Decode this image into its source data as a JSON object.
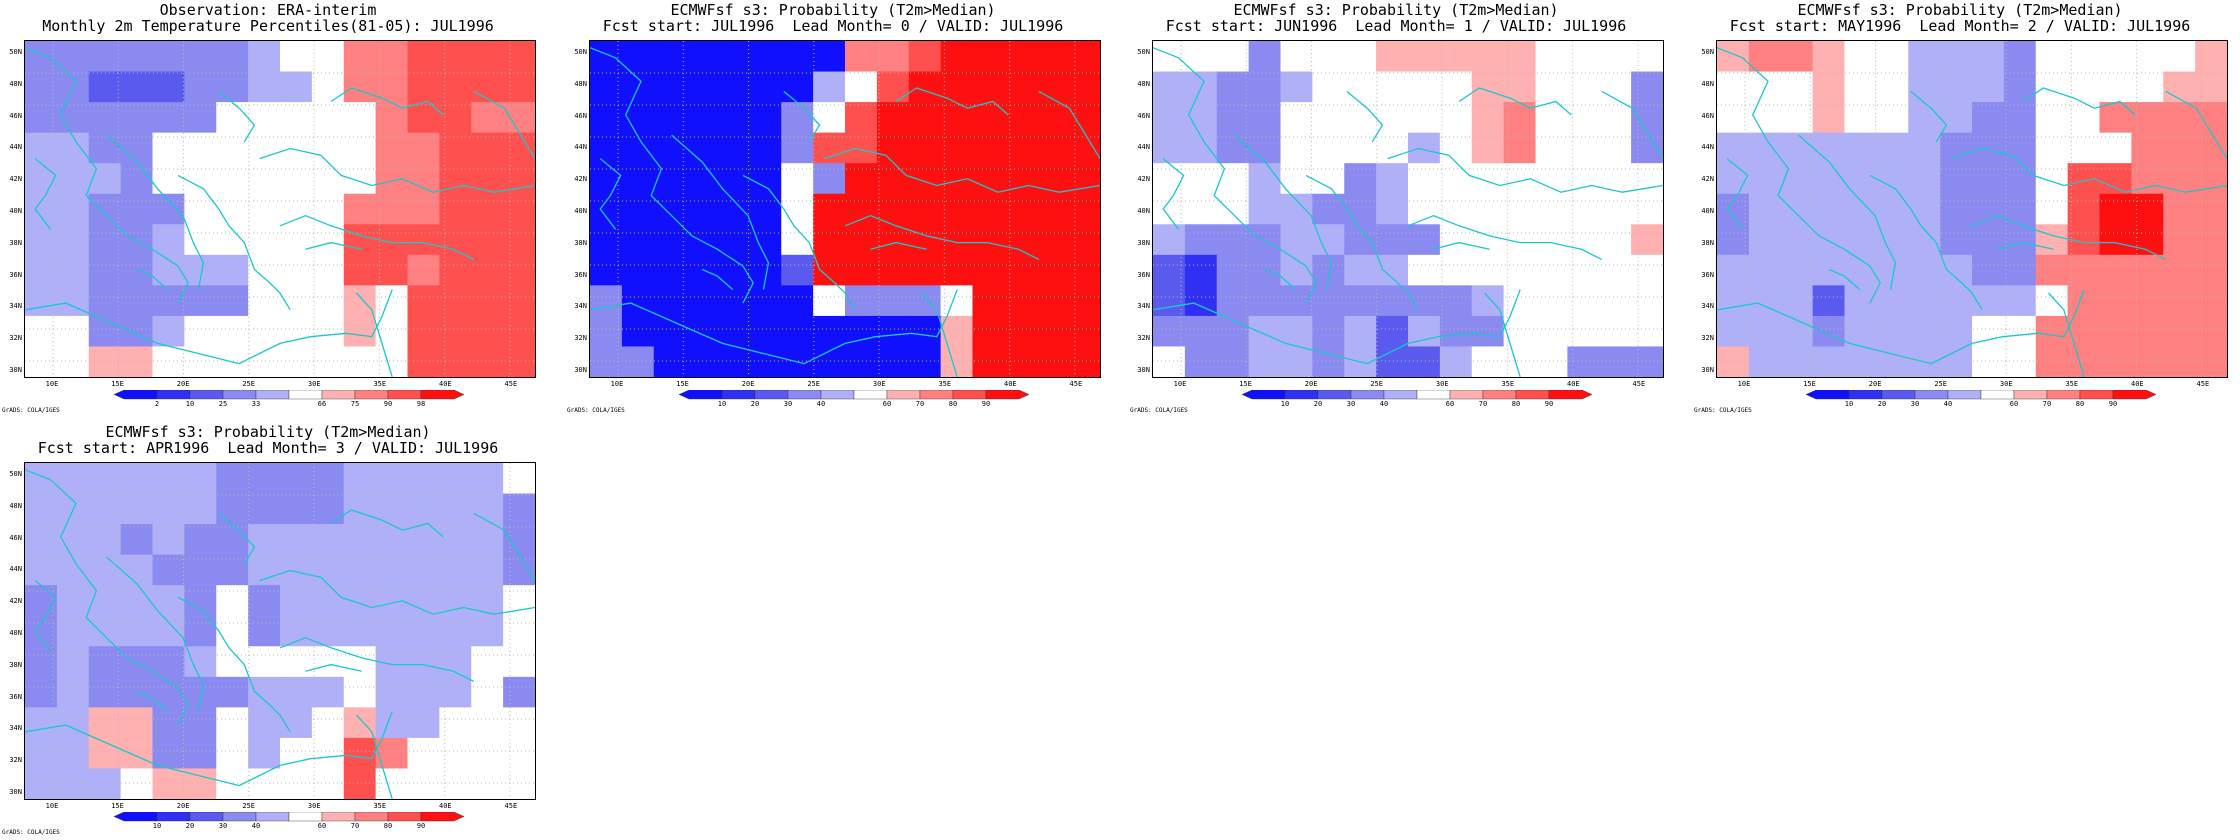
{
  "colors": {
    "levels": [
      "#1010ff",
      "#3030f5",
      "#5a5aee",
      "#8a8af0",
      "#b0b0f8",
      "#ffffff",
      "#ffb0b0",
      "#ff8080",
      "#ff5050",
      "#ff1010"
    ],
    "coast": "#19c8cc",
    "grid": "#b8b8b8"
  },
  "lat_ticks": [
    "50N",
    "48N",
    "46N",
    "44N",
    "42N",
    "40N",
    "38N",
    "36N",
    "34N",
    "32N",
    "30N"
  ],
  "lon_ticks": [
    "10E",
    "15E",
    "20E",
    "25E",
    "30E",
    "35E",
    "40E",
    "45E"
  ],
  "credit": "GrADS: COLA/IGES",
  "panels": [
    {
      "title1": "Observation: ERA-interim",
      "title2": "Monthly 2m Temperature Percentiles(81-05): JUL1996",
      "colorbar": [
        "2",
        "10",
        "25",
        "33",
        "66",
        "75",
        "90",
        "98"
      ],
      "icon": "map-icon",
      "grid": [
        "3333333455778888",
        "3322233445778888",
        "3333335555578877",
        "4433555555577888",
        "4443555555577888",
        "4433355555777888",
        "4433455555888888",
        "4433444555887888",
        "4433333555658888",
        "5533455555658888",
        "5566555555558888"
      ]
    },
    {
      "title1": "ECMWFsf s3: Probability (T2m>Median)",
      "title2": "Fcst start: JUL1996  Lead Month= 0 / VALID: JUL1996",
      "colorbar": [
        "10",
        "20",
        "30",
        "40",
        "60",
        "70",
        "80",
        "90"
      ],
      "icon": "map-icon",
      "grid": [
        "0000000077899999",
        "0000000458999999",
        "0000003589999999",
        "0000003889999999",
        "0000005399999999",
        "0000005999999999",
        "0000005999999999",
        "0000002999999999",
        "3000000533359999",
        "3000000000069999",
        "3300000000069999"
      ]
    },
    {
      "title1": "ECMWFsf s3: Probability (T2m>Median)",
      "title2": "Fcst start: JUN1996  Lead Month= 1 / VALID: JUL1996",
      "colorbar": [
        "10",
        "20",
        "30",
        "40",
        "60",
        "70",
        "80",
        "90"
      ],
      "icon": "map-icon",
      "grid": [
        "5553555666665555",
        "4433455555665553",
        "4433555555675553",
        "4433555545675553",
        "5554553455555555",
        "5554433455555555",
        "4333443335555556",
        "2133434455555555",
        "2133333333455555",
        "3334434243355555",
        "5334434224555333"
      ]
    },
    {
      "title1": "ECMWFsf s3: Probability (T2m>Median)",
      "title2": "Fcst start: MAY1996  Lead Month= 2 / VALID: JUL1996",
      "colorbar": [
        "10",
        "20",
        "30",
        "40",
        "60",
        "70",
        "80",
        "90"
      ],
      "icon": "map-icon",
      "grid": [
        "6776554443555556",
        "5556554443555566",
        "5556554433557777",
        "4444444333555777",
        "4444444333588777",
        "3444444333589977",
        "3444444333689977",
        "4444444433777777",
        "4442444444577777",
        "4443444455777777",
        "6444444455777777"
      ]
    },
    {
      "title1": "ECMWFsf s3: Probability (T2m>Median)",
      "title2": "Fcst start: APR1996  Lead Month= 3 / VALID: JUL1996",
      "colorbar": [
        "10",
        "20",
        "30",
        "40",
        "60",
        "70",
        "80",
        "90"
      ],
      "icon": "map-icon",
      "grid": [
        "4444443333444445",
        "4444443333444443",
        "4443433444444443",
        "4444333444444443",
        "3444435344444445",
        "3444435344444445",
        "3433345555544455",
        "3433333444544453",
        "4466335445644555",
        "4466335455875555",
        "4445665555855555"
      ]
    }
  ]
}
